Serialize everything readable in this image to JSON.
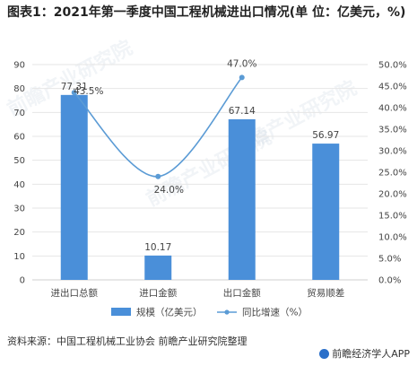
{
  "title": "图表1：2021年第一季度中国工程机械进出口情况(单 位：亿美元，%)",
  "watermarks": [
    "前瞻产业研究院",
    "前瞻产业研究院",
    "前瞻产业研究院"
  ],
  "source": "资料来源：中国工程机械工业协会 前瞻产业研究院整理",
  "app_credit": "前瞻经济学人APP",
  "colors": {
    "bar": "#4a8fd9",
    "line": "#5b9bd5",
    "grid": "#e6e6e6",
    "text": "#444444"
  },
  "chart_data": {
    "type": "bar",
    "categories": [
      "进出口总额",
      "进口金额",
      "出口金额",
      "贸易顺差"
    ],
    "series": [
      {
        "name": "规模（亿美元）",
        "type": "bar",
        "axis": "left",
        "values": [
          77.31,
          10.17,
          67.14,
          56.97
        ],
        "labels": [
          "77.31",
          "10.17",
          "67.14",
          "56.97"
        ]
      },
      {
        "name": "同比增速（%）",
        "type": "line",
        "axis": "right",
        "values": [
          43.5,
          24.0,
          47.0,
          null
        ],
        "labels": [
          "43.5%",
          "24.0%",
          "47.0%",
          ""
        ]
      }
    ],
    "y_left": {
      "min": 0,
      "max": 90,
      "ticks": [
        "0",
        "10",
        "20",
        "30",
        "40",
        "50",
        "60",
        "70",
        "80",
        "90"
      ]
    },
    "y_right": {
      "min": 0,
      "max": 50,
      "ticks": [
        "0.0%",
        "5.0%",
        "10.0%",
        "15.0%",
        "20.0%",
        "25.0%",
        "30.0%",
        "35.0%",
        "40.0%",
        "45.0%",
        "50.0%"
      ]
    },
    "grid": true,
    "legend_position": "bottom"
  }
}
